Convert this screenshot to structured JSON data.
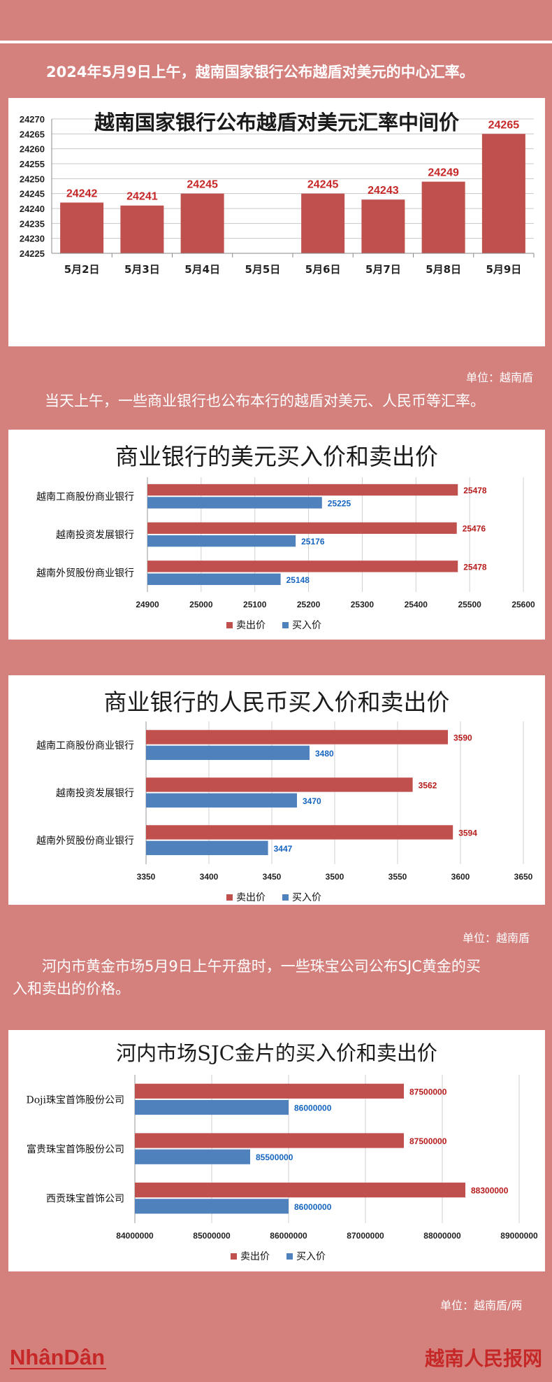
{
  "intro": "2024年5月9日上午，越南国家银行公布越盾对美元的中心汇率。",
  "para2": "当天上午，一些商业银行也公布本行的越盾对美元、人民币等汇率。",
  "para3_line1": "河内市黄金市场5月9日上午开盘时，一些珠宝公司公布SJC黄金的买",
  "para3_line2": "入和卖出的价格。",
  "unit1": "单位：越南盾",
  "unit2": "单位：越南盾",
  "unit3": "单位：越南盾/两",
  "logo_left": "NhânDân",
  "logo_right": "越南人民报网",
  "colors": {
    "sell": "#c0504d",
    "buy": "#4f81bd",
    "background": "#d4817e"
  },
  "chart_data": [
    {
      "type": "bar",
      "title": "越南国家银行公布越盾对美元汇率中间价",
      "categories": [
        "5月2日",
        "5月3日",
        "5月4日",
        "5月5日",
        "5月6日",
        "5月7日",
        "5月8日",
        "5月9日"
      ],
      "values": [
        24242,
        24241,
        24245,
        null,
        24245,
        24243,
        24249,
        24265
      ],
      "ylim": [
        24225,
        24270
      ],
      "yticks": [
        24225,
        24230,
        24235,
        24240,
        24245,
        24250,
        24255,
        24260,
        24265,
        24270
      ],
      "grid": true
    },
    {
      "type": "bar",
      "orientation": "horizontal",
      "title": "商业银行的美元买入价和卖出价",
      "categories": [
        "越南工商股份商业银行",
        "越南投资发展银行",
        "越南外贸股份商业银行"
      ],
      "series": [
        {
          "name": "卖出价",
          "values": [
            25478,
            25476,
            25478
          ]
        },
        {
          "name": "买入价",
          "values": [
            25225,
            25176,
            25148
          ]
        }
      ],
      "xlim": [
        24900,
        25600
      ],
      "xticks": [
        24900,
        25000,
        25100,
        25200,
        25300,
        25400,
        25500,
        25600
      ],
      "legend": "bottom",
      "grid": true
    },
    {
      "type": "bar",
      "orientation": "horizontal",
      "title": "商业银行的人民币买入价和卖出价",
      "categories": [
        "越南工商股份商业银行",
        "越南投资发展银行",
        "越南外贸股份商业银行"
      ],
      "series": [
        {
          "name": "卖出价",
          "values": [
            3590,
            3562,
            3594
          ]
        },
        {
          "name": "买入价",
          "values": [
            3480,
            3470,
            3447
          ]
        }
      ],
      "xlim": [
        3350,
        3650
      ],
      "xticks": [
        3350,
        3400,
        3450,
        3500,
        3550,
        3600,
        3650
      ],
      "legend": "bottom",
      "grid": true
    },
    {
      "type": "bar",
      "orientation": "horizontal",
      "title": "河内市场SJC金片的买入价和卖出价",
      "categories": [
        "Doji珠宝首饰股份公司",
        "富贵珠宝首饰股份公司",
        "西贡珠宝首饰公司"
      ],
      "series": [
        {
          "name": "卖出价",
          "values": [
            87500000,
            87500000,
            88300000
          ]
        },
        {
          "name": "买入价",
          "values": [
            86000000,
            85500000,
            86000000
          ]
        }
      ],
      "xlim": [
        84000000,
        89000000
      ],
      "xticks": [
        84000000,
        85000000,
        86000000,
        87000000,
        88000000,
        89000000
      ],
      "legend": "bottom",
      "grid": true
    }
  ]
}
